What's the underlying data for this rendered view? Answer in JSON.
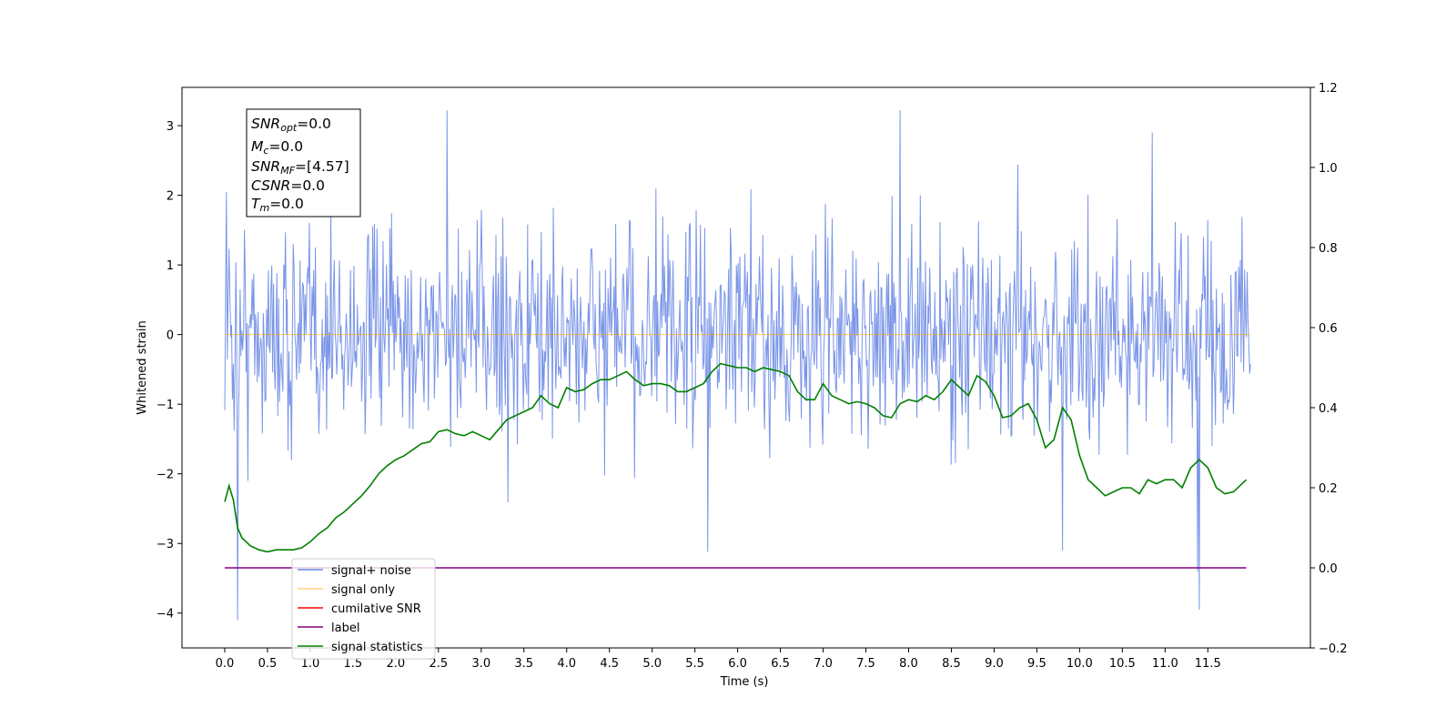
{
  "chart_data": {
    "type": "line",
    "xlabel": "Time (s)",
    "ylabel": "Whitened strain",
    "xlim": [
      -0.5,
      12.7
    ],
    "ylim": [
      -4.5,
      3.55
    ],
    "y2lim": [
      -0.2,
      1.2
    ],
    "x_ticks": [
      0.0,
      0.5,
      1.0,
      1.5,
      2.0,
      2.5,
      3.0,
      3.5,
      4.0,
      4.5,
      5.0,
      5.5,
      6.0,
      6.5,
      7.0,
      7.5,
      8.0,
      8.5,
      9.0,
      9.5,
      10.0,
      10.5,
      11.0,
      11.5
    ],
    "x_tick_labels": [
      "0.0",
      "0.5",
      "1.0",
      "1.5",
      "2.0",
      "2.5",
      "3.0",
      "3.5",
      "4.0",
      "4.5",
      "5.0",
      "5.5",
      "6.0",
      "6.5",
      "7.0",
      "7.5",
      "8.0",
      "8.5",
      "9.0",
      "9.5",
      "10.0",
      "10.5",
      "11.0",
      "11.5"
    ],
    "y_ticks": [
      -4,
      -3,
      -2,
      -1,
      0,
      1,
      2,
      3
    ],
    "y_tick_labels": [
      "−4",
      "−3",
      "−2",
      "−1",
      "0",
      "1",
      "2",
      "3"
    ],
    "y2_ticks": [
      -0.2,
      0.0,
      0.2,
      0.4,
      0.6,
      0.8,
      1.0,
      1.2
    ],
    "y2_tick_labels": [
      "−0.2",
      "0.0",
      "0.2",
      "0.4",
      "0.6",
      "0.8",
      "1.0",
      "1.2"
    ],
    "grid": false,
    "legend_placement": "lower-left",
    "series": [
      {
        "name": "signal+ noise",
        "color": "#6b8ae6",
        "axis": "left",
        "x_range": [
          0.0,
          12.0
        ],
        "sample_count": 1200,
        "std": 0.75,
        "notable_peaks": [
          [
            0.02,
            2.05
          ],
          [
            0.15,
            -4.1
          ],
          [
            2.6,
            3.22
          ],
          [
            7.9,
            3.22
          ],
          [
            11.38,
            -3.4
          ],
          [
            11.4,
            -3.95
          ],
          [
            5.65,
            -3.12
          ],
          [
            9.8,
            -3.1
          ],
          [
            10.85,
            2.9
          ]
        ]
      },
      {
        "name": "signal only",
        "color": "#ffa500",
        "axis": "left",
        "x": [
          0.0,
          12.0
        ],
        "y": [
          0.0,
          0.0
        ]
      },
      {
        "name": "cumilative SNR",
        "color": "#ff0000",
        "axis": "right",
        "x": [],
        "y": []
      },
      {
        "name": "label",
        "color": "#800080",
        "axis": "right",
        "x": [
          0.0,
          11.95
        ],
        "y": [
          0.0,
          0.0
        ]
      },
      {
        "name": "signal statistics",
        "color": "#008000",
        "axis": "right",
        "x": [
          0.0,
          0.05,
          0.1,
          0.15,
          0.2,
          0.3,
          0.4,
          0.5,
          0.6,
          0.7,
          0.8,
          0.9,
          1.0,
          1.1,
          1.2,
          1.3,
          1.4,
          1.5,
          1.6,
          1.7,
          1.8,
          1.9,
          2.0,
          2.1,
          2.2,
          2.3,
          2.4,
          2.5,
          2.6,
          2.7,
          2.8,
          2.9,
          3.0,
          3.1,
          3.2,
          3.3,
          3.4,
          3.5,
          3.6,
          3.7,
          3.8,
          3.9,
          4.0,
          4.1,
          4.2,
          4.3,
          4.4,
          4.5,
          4.6,
          4.7,
          4.8,
          4.9,
          5.0,
          5.1,
          5.2,
          5.3,
          5.4,
          5.5,
          5.6,
          5.7,
          5.8,
          5.9,
          6.0,
          6.1,
          6.2,
          6.3,
          6.4,
          6.5,
          6.6,
          6.7,
          6.8,
          6.9,
          7.0,
          7.1,
          7.2,
          7.3,
          7.4,
          7.5,
          7.6,
          7.7,
          7.8,
          7.9,
          8.0,
          8.1,
          8.2,
          8.3,
          8.4,
          8.5,
          8.6,
          8.7,
          8.8,
          8.9,
          9.0,
          9.1,
          9.2,
          9.3,
          9.4,
          9.5,
          9.6,
          9.7,
          9.8,
          9.9,
          10.0,
          10.1,
          10.2,
          10.3,
          10.4,
          10.5,
          10.6,
          10.7,
          10.8,
          10.9,
          11.0,
          11.1,
          11.2,
          11.3,
          11.4,
          11.5,
          11.6,
          11.7,
          11.8,
          11.95
        ],
        "y": [
          0.165,
          0.205,
          0.17,
          0.1,
          0.075,
          0.055,
          0.045,
          0.04,
          0.045,
          0.045,
          0.045,
          0.05,
          0.065,
          0.085,
          0.1,
          0.125,
          0.14,
          0.16,
          0.18,
          0.205,
          0.235,
          0.255,
          0.27,
          0.28,
          0.295,
          0.31,
          0.315,
          0.34,
          0.345,
          0.335,
          0.33,
          0.34,
          0.33,
          0.32,
          0.345,
          0.37,
          0.38,
          0.39,
          0.4,
          0.43,
          0.41,
          0.4,
          0.45,
          0.44,
          0.445,
          0.46,
          0.47,
          0.47,
          0.48,
          0.49,
          0.47,
          0.455,
          0.46,
          0.46,
          0.455,
          0.44,
          0.44,
          0.45,
          0.46,
          0.49,
          0.51,
          0.505,
          0.5,
          0.5,
          0.49,
          0.5,
          0.495,
          0.49,
          0.48,
          0.44,
          0.42,
          0.42,
          0.46,
          0.43,
          0.42,
          0.41,
          0.415,
          0.41,
          0.4,
          0.38,
          0.375,
          0.41,
          0.42,
          0.415,
          0.43,
          0.42,
          0.44,
          0.47,
          0.45,
          0.43,
          0.48,
          0.465,
          0.43,
          0.375,
          0.38,
          0.4,
          0.41,
          0.37,
          0.3,
          0.32,
          0.4,
          0.37,
          0.28,
          0.22,
          0.2,
          0.18,
          0.19,
          0.2,
          0.2,
          0.185,
          0.22,
          0.21,
          0.22,
          0.22,
          0.2,
          0.25,
          0.27,
          0.25,
          0.2,
          0.185,
          0.19,
          0.22
        ]
      }
    ]
  },
  "info_box": {
    "lines": [
      {
        "label": "SNR",
        "sub": "opt",
        "value": "=0.0"
      },
      {
        "label": "M",
        "sub": "c",
        "value": "=0.0"
      },
      {
        "label": "SNR",
        "sub": "MF",
        "value": "=[4.57]"
      },
      {
        "label": "CSNR",
        "sub": "",
        "value": "=0.0"
      },
      {
        "label": "T",
        "sub": "m",
        "value": "=0.0"
      }
    ]
  },
  "legend_items": [
    {
      "label": "signal+ noise",
      "color": "#6b8ae6"
    },
    {
      "label": "signal only",
      "color": "#ffa500"
    },
    {
      "label": "cumilative SNR",
      "color": "#ff0000"
    },
    {
      "label": "label",
      "color": "#800080"
    },
    {
      "label": "signal statistics",
      "color": "#008000"
    }
  ]
}
